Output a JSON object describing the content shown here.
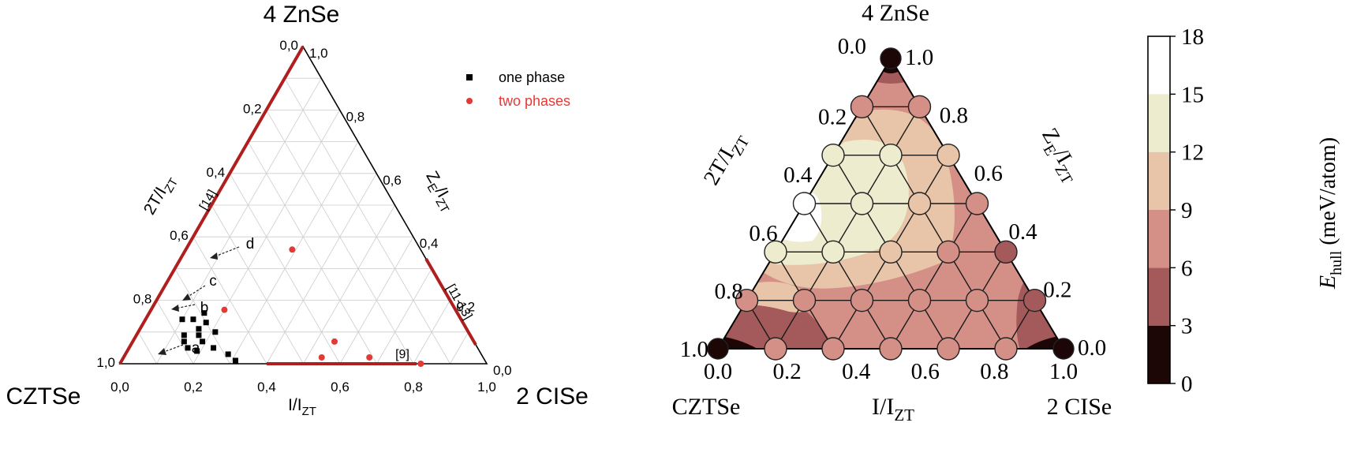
{
  "chart_data": [
    {
      "type": "scatter",
      "subtype": "ternary",
      "vertex_labels": {
        "top": "4 ZnSe",
        "left": "CZTSe",
        "right": "2 CISe"
      },
      "axis_labels": {
        "left": {
          "main": "2T/I",
          "sub": "ZT"
        },
        "right": {
          "main1": "Z",
          "sub1": "E",
          "main2": "/I",
          "sub2": "ZT"
        },
        "bottom": {
          "main": "I/I",
          "sub": "ZT"
        }
      },
      "ticks": {
        "bottom": [
          "0,0",
          "0,2",
          "0,4",
          "0,6",
          "0,8",
          "1,0"
        ],
        "left": [
          "0,0",
          "0,2",
          "0,4",
          "0,6",
          "0,8",
          "1,0"
        ],
        "right": [
          "1,0",
          "0,8",
          "0,6",
          "0,4",
          "0,2",
          "0,0"
        ]
      },
      "grid": true,
      "legend_position": "top-right",
      "series": [
        {
          "name": "one phase",
          "marker": "square",
          "color": "#000000",
          "points": [
            {
              "x": 0.13,
              "y": 0.14
            },
            {
              "x": 0.1,
              "y": 0.14
            },
            {
              "x": 0.15,
              "y": 0.16
            },
            {
              "x": 0.13,
              "y": 0.09
            },
            {
              "x": 0.16,
              "y": 0.11
            },
            {
              "x": 0.17,
              "y": 0.13
            },
            {
              "x": 0.14,
              "y": 0.07
            },
            {
              "x": 0.17,
              "y": 0.09
            },
            {
              "x": 0.16,
              "y": 0.05
            },
            {
              "x": 0.19,
              "y": 0.07
            },
            {
              "x": 0.21,
              "y": 0.1
            },
            {
              "x": 0.19,
              "y": 0.04
            },
            {
              "x": 0.23,
              "y": 0.05
            },
            {
              "x": 0.28,
              "y": 0.03
            },
            {
              "x": 0.31,
              "y": 0.01
            }
          ]
        },
        {
          "name": "two phases",
          "marker": "circle",
          "color": "#e53935",
          "points": [
            {
              "x": 0.29,
              "y": 0.36
            },
            {
              "x": 0.2,
              "y": 0.17
            },
            {
              "x": 0.55,
              "y": 0.07
            },
            {
              "x": 0.54,
              "y": 0.02
            },
            {
              "x": 0.67,
              "y": 0.02
            },
            {
              "x": 0.82,
              "y": 0.0
            }
          ]
        }
      ],
      "annotations": [
        "a",
        "b",
        "c",
        "d"
      ],
      "reference_labels": [
        "[14]",
        "[11-13]",
        "[9]"
      ]
    },
    {
      "type": "heatmap",
      "subtype": "ternary",
      "vertex_labels": {
        "top": "4 ZnSe",
        "left": "CZTSe",
        "right": "2 CISe"
      },
      "axis_labels": {
        "left": {
          "main": "2T/I",
          "sub": "ZT"
        },
        "right": {
          "main1": "Z",
          "sub1": "E",
          "main2": "/I",
          "sub2": "ZT"
        },
        "bottom": {
          "main": "I/I",
          "sub": "ZT"
        }
      },
      "ticks": {
        "bottom": [
          "0.0",
          "0.2",
          "0.4",
          "0.6",
          "0.8",
          "1.0"
        ],
        "left": [
          "0.2",
          "0.4",
          "0.6",
          "0.8",
          "1.0"
        ],
        "right": [
          "1.0",
          "0.8",
          "0.6",
          "0.4",
          "0.2",
          "0.0"
        ],
        "top_left": "0.0"
      },
      "colorbar": {
        "label_main": "E",
        "label_sub": "hull",
        "label_unit": " (meV/atom)",
        "ticks": [
          "0",
          "3",
          "6",
          "9",
          "12",
          "15",
          "18"
        ],
        "colors": [
          "#1c0606",
          "#a4595a",
          "#d48f87",
          "#e8c5a8",
          "#edeccf",
          "#ffffff"
        ]
      },
      "lattice_divisions": 6
    }
  ]
}
